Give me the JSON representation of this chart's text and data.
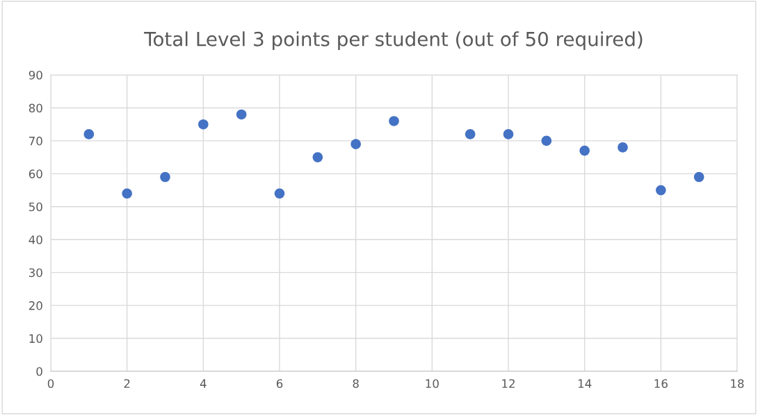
{
  "chart_data": {
    "type": "scatter",
    "title": "Total Level 3 points per student (out of 50 required)",
    "x": [
      1,
      2,
      3,
      4,
      5,
      6,
      7,
      8,
      9,
      11,
      12,
      13,
      14,
      15,
      16,
      17
    ],
    "series": [
      {
        "color": "#4472c4",
        "values": [
          72,
          54,
          59,
          75,
          78,
          54,
          65,
          69,
          76,
          72,
          72,
          70,
          67,
          68,
          55,
          59
        ]
      }
    ],
    "xlim": [
      0,
      18
    ],
    "xticks": [
      0,
      2,
      4,
      6,
      8,
      10,
      12,
      14,
      16,
      18
    ],
    "ylim": [
      0,
      90
    ],
    "yticks": [
      0,
      10,
      20,
      30,
      40,
      50,
      60,
      70,
      80,
      90
    ],
    "grid": true,
    "marker": "circle",
    "legend": false
  }
}
